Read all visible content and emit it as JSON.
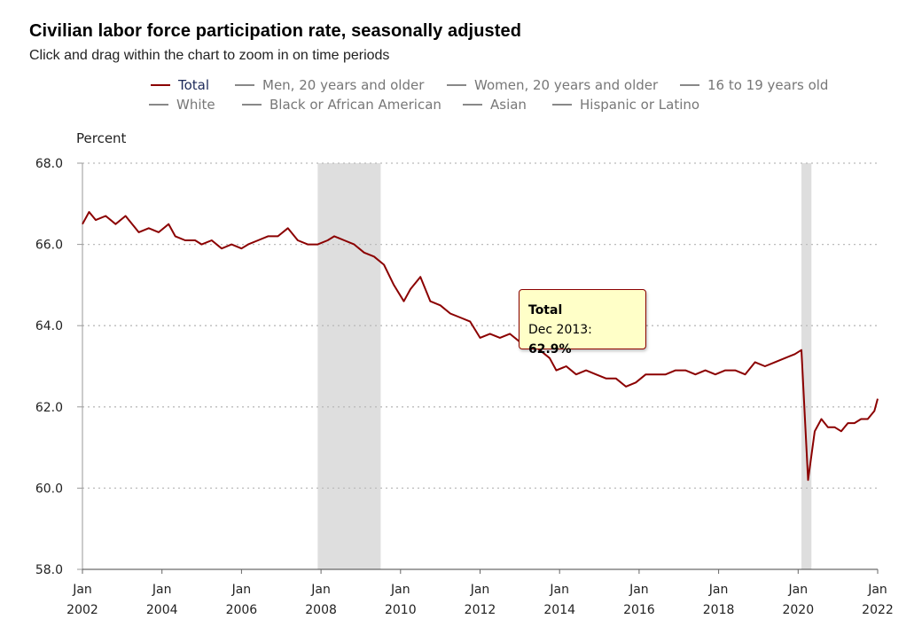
{
  "title": "Civilian labor force participation rate, seasonally adjusted",
  "subtitle": "Click and drag within the chart to zoom in on time periods",
  "legend": [
    {
      "label": "Total",
      "color": "#8b0000",
      "active": true
    },
    {
      "label": "Men, 20 years and older",
      "color": "#888888",
      "active": false
    },
    {
      "label": "Women, 20 years and older",
      "color": "#888888",
      "active": false
    },
    {
      "label": "16 to 19 years old",
      "color": "#888888",
      "active": false
    },
    {
      "label": "White",
      "color": "#888888",
      "active": false
    },
    {
      "label": "Black or African American",
      "color": "#888888",
      "active": false
    },
    {
      "label": "Asian",
      "color": "#888888",
      "active": false
    },
    {
      "label": "Hispanic or Latino",
      "color": "#888888",
      "active": false
    }
  ],
  "tooltip": {
    "series": "Total",
    "date_label": "Dec 2013:",
    "value_label": "62.9%"
  },
  "chart_data": {
    "type": "line",
    "ylabel": "Percent",
    "xlabel": "",
    "ylim": [
      58.0,
      68.0
    ],
    "yticks": [
      "68.0",
      "66.0",
      "64.0",
      "62.0",
      "60.0",
      "58.0"
    ],
    "ytick_values": [
      68,
      66,
      64,
      62,
      60,
      58
    ],
    "xlim": [
      "2002-01",
      "2022-01"
    ],
    "xticks": [
      {
        "month": "Jan",
        "year": "2002",
        "date": "2002-01"
      },
      {
        "month": "Jan",
        "year": "2004",
        "date": "2004-01"
      },
      {
        "month": "Jan",
        "year": "2006",
        "date": "2006-01"
      },
      {
        "month": "Jan",
        "year": "2008",
        "date": "2008-01"
      },
      {
        "month": "Jan",
        "year": "2010",
        "date": "2010-01"
      },
      {
        "month": "Jan",
        "year": "2012",
        "date": "2012-01"
      },
      {
        "month": "Jan",
        "year": "2014",
        "date": "2014-01"
      },
      {
        "month": "Jan",
        "year": "2016",
        "date": "2016-01"
      },
      {
        "month": "Jan",
        "year": "2018",
        "date": "2018-01"
      },
      {
        "month": "Jan",
        "year": "2020",
        "date": "2020-01"
      },
      {
        "month": "Jan",
        "year": "2022",
        "date": "2022-01"
      }
    ],
    "grid": true,
    "recessions": [
      {
        "start": "2007-12",
        "end": "2009-06"
      },
      {
        "start": "2020-02",
        "end": "2020-04"
      }
    ],
    "series": [
      {
        "name": "Total",
        "color": "#8b0000",
        "points": [
          [
            "2002-01",
            66.5
          ],
          [
            "2002-03",
            66.8
          ],
          [
            "2002-05",
            66.6
          ],
          [
            "2002-08",
            66.7
          ],
          [
            "2002-11",
            66.5
          ],
          [
            "2003-02",
            66.7
          ],
          [
            "2003-04",
            66.5
          ],
          [
            "2003-06",
            66.3
          ],
          [
            "2003-09",
            66.4
          ],
          [
            "2003-12",
            66.3
          ],
          [
            "2004-03",
            66.5
          ],
          [
            "2004-05",
            66.2
          ],
          [
            "2004-08",
            66.1
          ],
          [
            "2004-11",
            66.1
          ],
          [
            "2005-01",
            66.0
          ],
          [
            "2005-04",
            66.1
          ],
          [
            "2005-07",
            65.9
          ],
          [
            "2005-10",
            66.0
          ],
          [
            "2006-01",
            65.9
          ],
          [
            "2006-03",
            66.0
          ],
          [
            "2006-06",
            66.1
          ],
          [
            "2006-09",
            66.2
          ],
          [
            "2006-12",
            66.2
          ],
          [
            "2007-03",
            66.4
          ],
          [
            "2007-06",
            66.1
          ],
          [
            "2007-09",
            66.0
          ],
          [
            "2007-12",
            66.0
          ],
          [
            "2008-03",
            66.1
          ],
          [
            "2008-05",
            66.2
          ],
          [
            "2008-08",
            66.1
          ],
          [
            "2008-11",
            66.0
          ],
          [
            "2009-02",
            65.8
          ],
          [
            "2009-05",
            65.7
          ],
          [
            "2009-08",
            65.5
          ],
          [
            "2009-11",
            65.0
          ],
          [
            "2010-02",
            64.6
          ],
          [
            "2010-04",
            64.9
          ],
          [
            "2010-07",
            65.2
          ],
          [
            "2010-10",
            64.6
          ],
          [
            "2011-01",
            64.5
          ],
          [
            "2011-04",
            64.3
          ],
          [
            "2011-07",
            64.2
          ],
          [
            "2011-10",
            64.1
          ],
          [
            "2012-01",
            63.7
          ],
          [
            "2012-04",
            63.8
          ],
          [
            "2012-07",
            63.7
          ],
          [
            "2012-10",
            63.8
          ],
          [
            "2013-01",
            63.6
          ],
          [
            "2013-04",
            63.6
          ],
          [
            "2013-07",
            63.4
          ],
          [
            "2013-10",
            63.2
          ],
          [
            "2013-12",
            62.9
          ],
          [
            "2014-03",
            63.0
          ],
          [
            "2014-06",
            62.8
          ],
          [
            "2014-09",
            62.9
          ],
          [
            "2014-12",
            62.8
          ],
          [
            "2015-03",
            62.7
          ],
          [
            "2015-06",
            62.7
          ],
          [
            "2015-09",
            62.5
          ],
          [
            "2015-12",
            62.6
          ],
          [
            "2016-03",
            62.8
          ],
          [
            "2016-06",
            62.8
          ],
          [
            "2016-09",
            62.8
          ],
          [
            "2016-12",
            62.9
          ],
          [
            "2017-03",
            62.9
          ],
          [
            "2017-06",
            62.8
          ],
          [
            "2017-09",
            62.9
          ],
          [
            "2017-12",
            62.8
          ],
          [
            "2018-03",
            62.9
          ],
          [
            "2018-06",
            62.9
          ],
          [
            "2018-09",
            62.8
          ],
          [
            "2018-12",
            63.1
          ],
          [
            "2019-03",
            63.0
          ],
          [
            "2019-06",
            63.1
          ],
          [
            "2019-09",
            63.2
          ],
          [
            "2019-12",
            63.3
          ],
          [
            "2020-02",
            63.4
          ],
          [
            "2020-04",
            60.2
          ],
          [
            "2020-06",
            61.4
          ],
          [
            "2020-08",
            61.7
          ],
          [
            "2020-10",
            61.5
          ],
          [
            "2020-12",
            61.5
          ],
          [
            "2021-02",
            61.4
          ],
          [
            "2021-04",
            61.6
          ],
          [
            "2021-06",
            61.6
          ],
          [
            "2021-08",
            61.7
          ],
          [
            "2021-10",
            61.7
          ],
          [
            "2021-12",
            61.9
          ],
          [
            "2022-01",
            62.2
          ]
        ]
      }
    ]
  }
}
